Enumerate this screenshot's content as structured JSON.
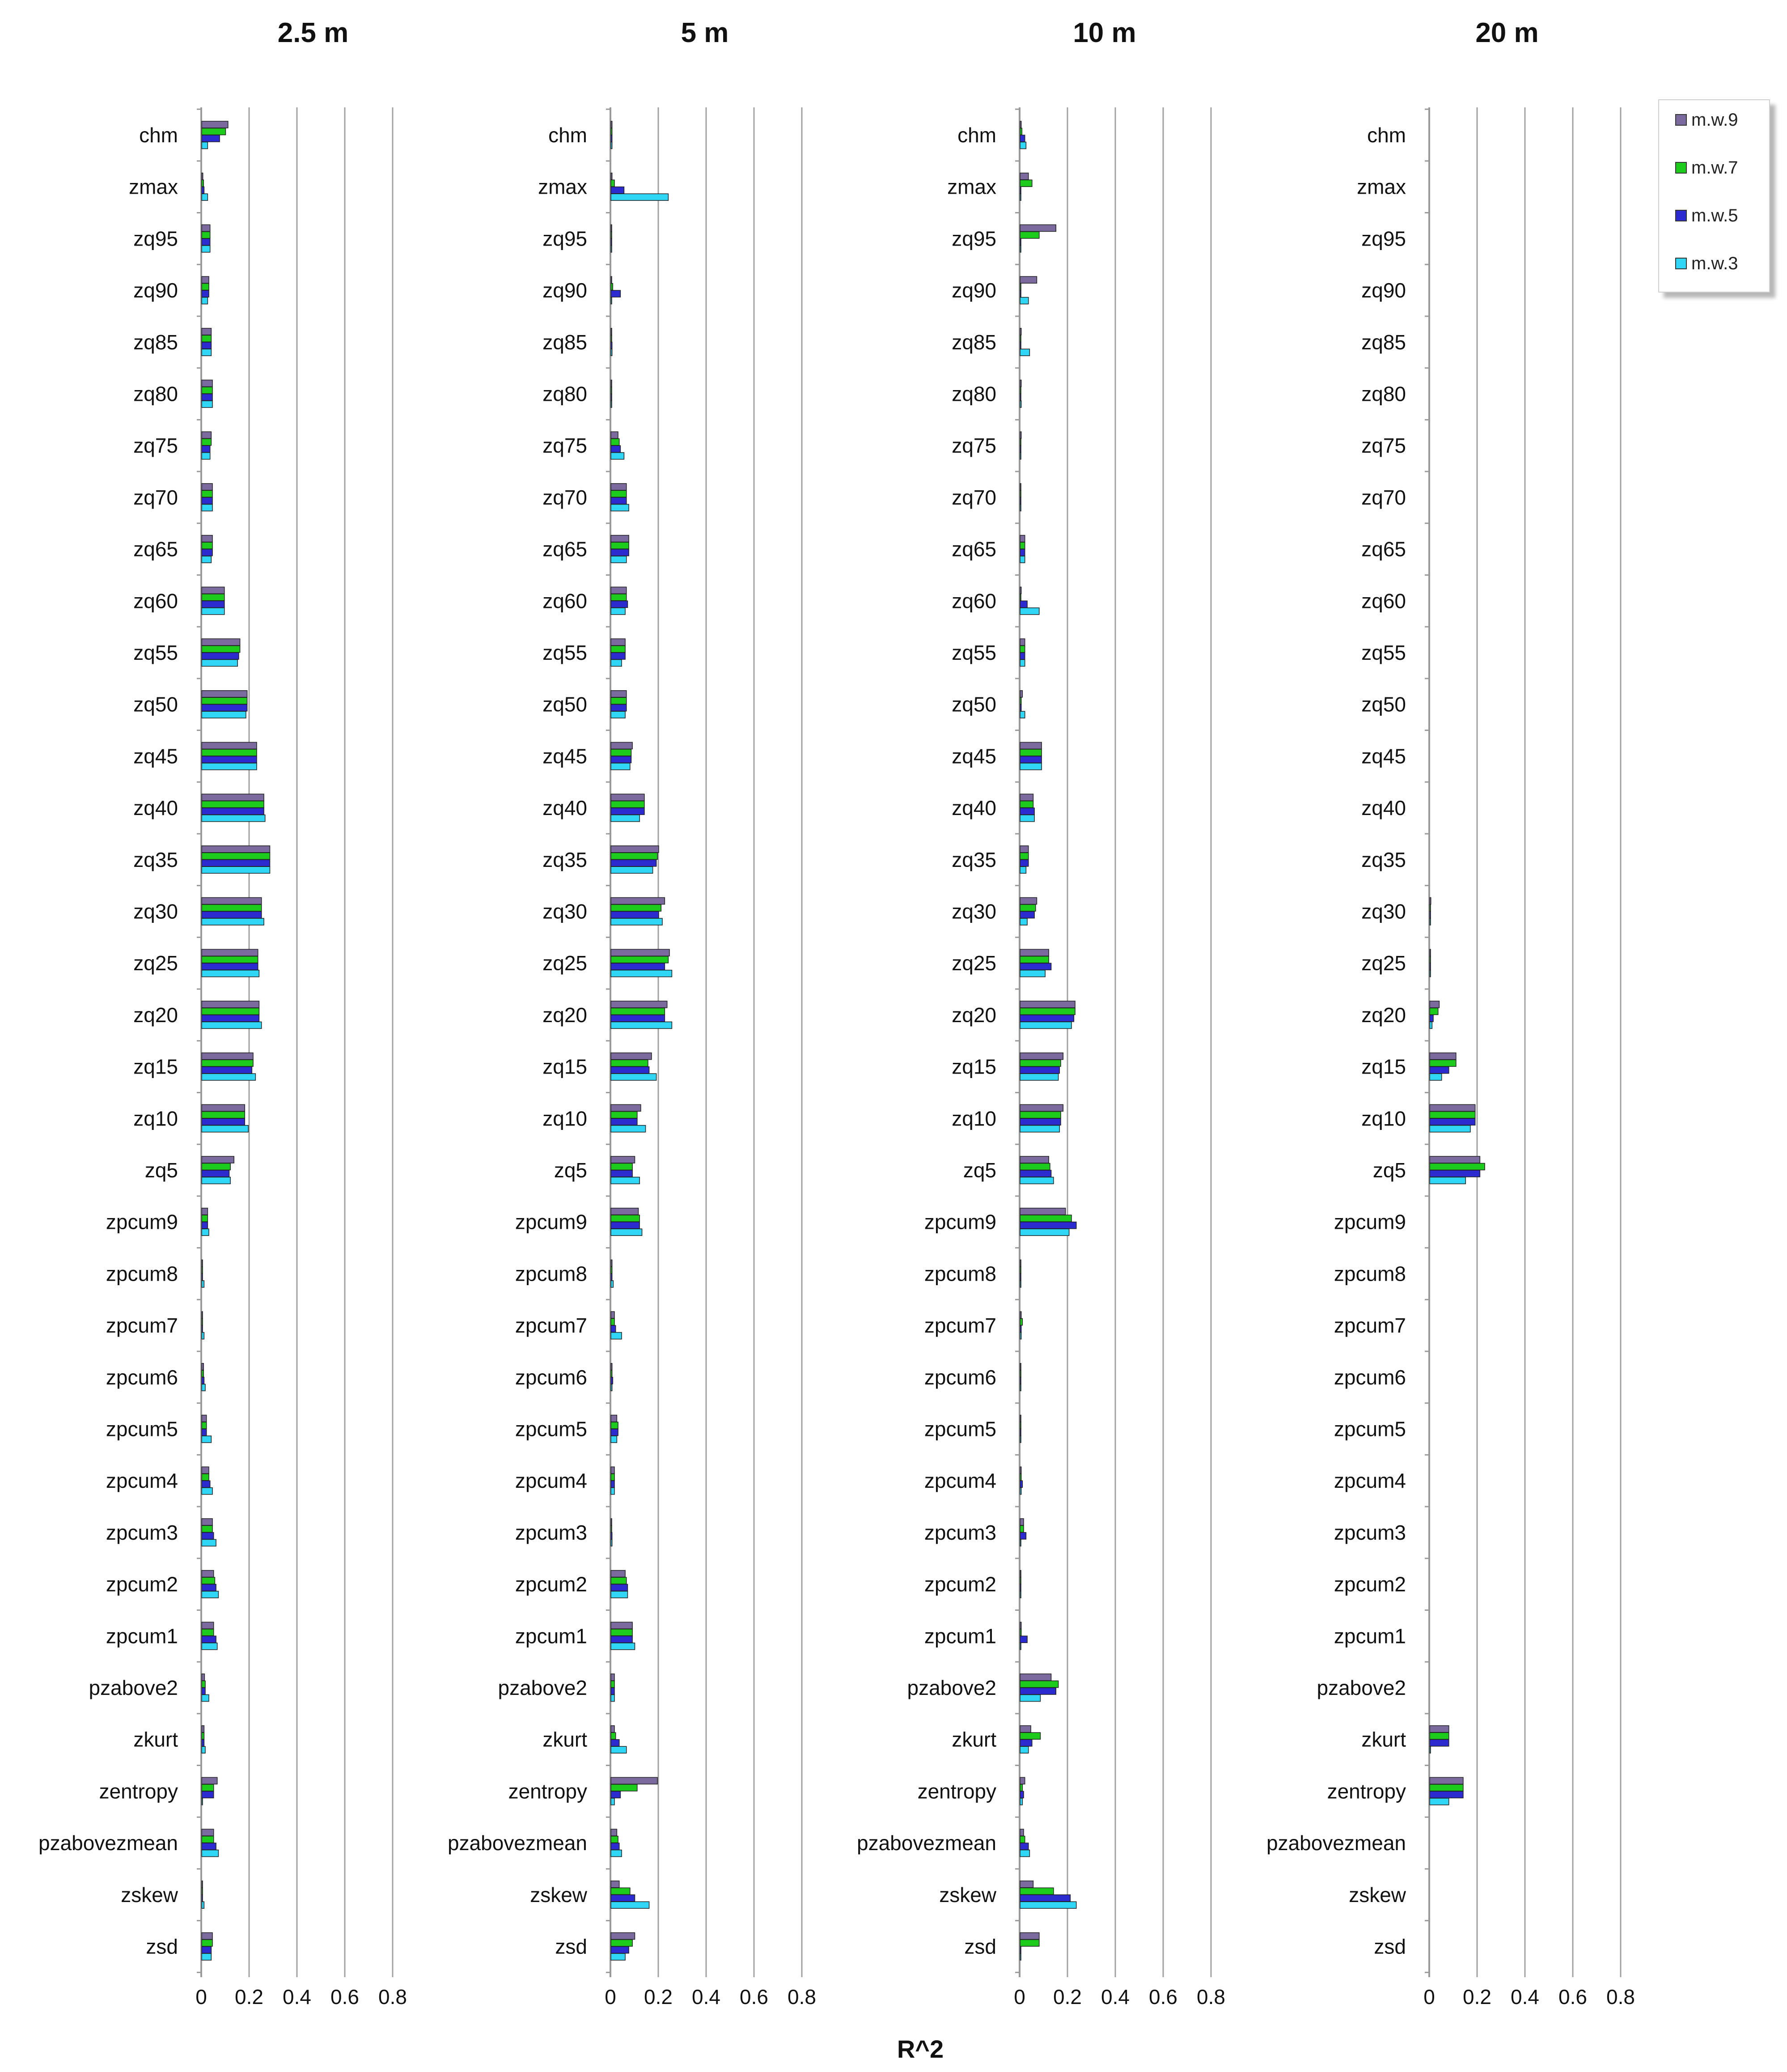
{
  "colors": {
    "mw9": "#7b6a9e",
    "mw7": "#1ccb1c",
    "mw5": "#2b2bd0",
    "mw3": "#2fd6f6",
    "grid": "#a0a0a0",
    "axis": "#9a9a9a",
    "text": "#111111"
  },
  "chart_data": {
    "type": "bar",
    "orientation": "horizontal",
    "xlabel": "R^2",
    "xlim": [
      0,
      0.8
    ],
    "xticks": [
      "0",
      "0.2",
      "0.4",
      "0.6",
      "0.8"
    ],
    "legend_position": "top-right",
    "categories": [
      "chm",
      "zmax",
      "zq95",
      "zq90",
      "zq85",
      "zq80",
      "zq75",
      "zq70",
      "zq65",
      "zq60",
      "zq55",
      "zq50",
      "zq45",
      "zq40",
      "zq35",
      "zq30",
      "zq25",
      "zq20",
      "zq15",
      "zq10",
      "zq5",
      "zpcum9",
      "zpcum8",
      "zpcum7",
      "zpcum6",
      "zpcum5",
      "zpcum4",
      "zpcum3",
      "zpcum2",
      "zpcum1",
      "pzabove2",
      "zkurt",
      "zentropy",
      "pzabovezmean",
      "zskew",
      "zsd"
    ],
    "series_names": [
      "m.w.9",
      "m.w.7",
      "m.w.5",
      "m.w.3"
    ],
    "panels": [
      {
        "title": "2.5 m",
        "series": [
          {
            "name": "m.w.9",
            "values": [
              0.11,
              0.005,
              0.035,
              0.03,
              0.04,
              0.045,
              0.04,
              0.045,
              0.045,
              0.095,
              0.16,
              0.19,
              0.23,
              0.26,
              0.285,
              0.25,
              0.235,
              0.24,
              0.215,
              0.18,
              0.135,
              0.025,
              0.003,
              0.003,
              0.008,
              0.02,
              0.03,
              0.045,
              0.05,
              0.05,
              0.012,
              0.01,
              0.065,
              0.05,
              0.003,
              0.045
            ]
          },
          {
            "name": "m.w.7",
            "values": [
              0.1,
              0.008,
              0.035,
              0.03,
              0.04,
              0.045,
              0.04,
              0.045,
              0.045,
              0.095,
              0.16,
              0.19,
              0.23,
              0.26,
              0.285,
              0.25,
              0.235,
              0.24,
              0.215,
              0.18,
              0.12,
              0.025,
              0.003,
              0.003,
              0.008,
              0.02,
              0.03,
              0.045,
              0.055,
              0.05,
              0.015,
              0.01,
              0.05,
              0.05,
              0.003,
              0.045
            ]
          },
          {
            "name": "m.w.5",
            "values": [
              0.075,
              0.01,
              0.035,
              0.03,
              0.04,
              0.045,
              0.035,
              0.045,
              0.045,
              0.095,
              0.155,
              0.19,
              0.23,
              0.26,
              0.285,
              0.25,
              0.235,
              0.24,
              0.21,
              0.18,
              0.115,
              0.025,
              0.003,
              0.003,
              0.01,
              0.02,
              0.035,
              0.05,
              0.06,
              0.06,
              0.015,
              0.01,
              0.05,
              0.06,
              0.003,
              0.04
            ]
          },
          {
            "name": "m.w.3",
            "values": [
              0.025,
              0.025,
              0.035,
              0.025,
              0.04,
              0.045,
              0.035,
              0.045,
              0.04,
              0.095,
              0.15,
              0.185,
              0.23,
              0.265,
              0.285,
              0.26,
              0.24,
              0.25,
              0.225,
              0.195,
              0.12,
              0.03,
              0.01,
              0.01,
              0.015,
              0.04,
              0.045,
              0.06,
              0.07,
              0.065,
              0.03,
              0.015,
              0.003,
              0.07,
              0.01,
              0.04
            ]
          }
        ]
      },
      {
        "title": "5 m",
        "series": [
          {
            "name": "m.w.9",
            "values": [
              0.005,
              0.005,
              0.003,
              0.003,
              0.003,
              0.002,
              0.03,
              0.065,
              0.075,
              0.065,
              0.06,
              0.065,
              0.09,
              0.14,
              0.2,
              0.225,
              0.245,
              0.235,
              0.17,
              0.125,
              0.1,
              0.115,
              0.005,
              0.015,
              0.005,
              0.025,
              0.015,
              0.003,
              0.06,
              0.09,
              0.015,
              0.015,
              0.195,
              0.025,
              0.035,
              0.1
            ]
          },
          {
            "name": "m.w.7",
            "values": [
              0.005,
              0.015,
              0.003,
              0.008,
              0.003,
              0.002,
              0.035,
              0.065,
              0.075,
              0.065,
              0.06,
              0.065,
              0.085,
              0.14,
              0.195,
              0.21,
              0.24,
              0.225,
              0.155,
              0.11,
              0.09,
              0.12,
              0.005,
              0.015,
              0.005,
              0.03,
              0.015,
              0.003,
              0.065,
              0.09,
              0.015,
              0.02,
              0.11,
              0.03,
              0.08,
              0.09
            ]
          },
          {
            "name": "m.w.5",
            "values": [
              0.005,
              0.055,
              0.003,
              0.04,
              0.005,
              0.002,
              0.04,
              0.065,
              0.075,
              0.07,
              0.06,
              0.065,
              0.085,
              0.14,
              0.19,
              0.2,
              0.225,
              0.225,
              0.16,
              0.11,
              0.09,
              0.12,
              0.005,
              0.02,
              0.008,
              0.03,
              0.015,
              0.005,
              0.07,
              0.09,
              0.015,
              0.035,
              0.04,
              0.035,
              0.1,
              0.075
            ]
          },
          {
            "name": "m.w.3",
            "values": [
              0.005,
              0.24,
              0.003,
              0.003,
              0.005,
              0.002,
              0.055,
              0.075,
              0.065,
              0.06,
              0.045,
              0.06,
              0.08,
              0.12,
              0.175,
              0.215,
              0.255,
              0.255,
              0.19,
              0.145,
              0.12,
              0.13,
              0.01,
              0.045,
              0.005,
              0.025,
              0.015,
              0.005,
              0.07,
              0.1,
              0.015,
              0.065,
              0.015,
              0.045,
              0.16,
              0.06
            ]
          }
        ]
      },
      {
        "title": "10 m",
        "series": [
          {
            "name": "m.w.9",
            "values": [
              0.005,
              0.035,
              0.15,
              0.07,
              0.005,
              0.005,
              0.005,
              0.002,
              0.02,
              0.005,
              0.02,
              0.01,
              0.09,
              0.055,
              0.035,
              0.07,
              0.12,
              0.23,
              0.18,
              0.18,
              0.12,
              0.19,
              0.003,
              0.005,
              0.003,
              0.003,
              0.005,
              0.015,
              0.003,
              0.005,
              0.13,
              0.045,
              0.02,
              0.015,
              0.055,
              0.08
            ]
          },
          {
            "name": "m.w.7",
            "values": [
              0.008,
              0.05,
              0.08,
              0.003,
              0.003,
              0.003,
              0.003,
              0.002,
              0.02,
              0.003,
              0.02,
              0.005,
              0.09,
              0.055,
              0.035,
              0.065,
              0.12,
              0.23,
              0.17,
              0.17,
              0.125,
              0.215,
              0.003,
              0.01,
              0.003,
              0.003,
              0.005,
              0.015,
              0.003,
              0.005,
              0.16,
              0.085,
              0.01,
              0.02,
              0.14,
              0.08
            ]
          },
          {
            "name": "m.w.5",
            "values": [
              0.02,
              0.003,
              0.003,
              0.003,
              0.003,
              0.003,
              0.003,
              0.002,
              0.02,
              0.03,
              0.02,
              0.005,
              0.09,
              0.06,
              0.035,
              0.06,
              0.13,
              0.225,
              0.165,
              0.17,
              0.13,
              0.235,
              0.003,
              0.005,
              0.003,
              0.003,
              0.01,
              0.025,
              0.003,
              0.03,
              0.15,
              0.05,
              0.015,
              0.035,
              0.21,
              0.003
            ]
          },
          {
            "name": "m.w.3",
            "values": [
              0.025,
              0.003,
              0.003,
              0.035,
              0.04,
              0.005,
              0.003,
              0.002,
              0.02,
              0.08,
              0.02,
              0.02,
              0.09,
              0.06,
              0.025,
              0.03,
              0.105,
              0.215,
              0.16,
              0.165,
              0.14,
              0.205,
              0.003,
              0.005,
              0.003,
              0.003,
              0.005,
              0.003,
              0.003,
              0.003,
              0.085,
              0.035,
              0.01,
              0.04,
              0.235,
              0.003
            ]
          }
        ]
      },
      {
        "title": "20 m",
        "series": [
          {
            "name": "m.w.9",
            "values": [
              0,
              0,
              0,
              0,
              0,
              0,
              0,
              0,
              0,
              0,
              0,
              0,
              0,
              0,
              0,
              0.005,
              0.003,
              0.04,
              0.11,
              0.19,
              0.21,
              0,
              0,
              0,
              0,
              0,
              0,
              0,
              0,
              0,
              0,
              0.08,
              0.14,
              0,
              0,
              0
            ]
          },
          {
            "name": "m.w.7",
            "values": [
              0,
              0,
              0,
              0,
              0,
              0,
              0,
              0,
              0,
              0,
              0,
              0,
              0,
              0,
              0,
              0.003,
              0.003,
              0.035,
              0.11,
              0.19,
              0.23,
              0,
              0,
              0,
              0,
              0,
              0,
              0,
              0,
              0,
              0,
              0.08,
              0.14,
              0,
              0,
              0
            ]
          },
          {
            "name": "m.w.5",
            "values": [
              0,
              0,
              0,
              0,
              0,
              0,
              0,
              0,
              0,
              0,
              0,
              0,
              0,
              0,
              0,
              0.003,
              0.003,
              0.015,
              0.08,
              0.19,
              0.21,
              0,
              0,
              0,
              0,
              0,
              0,
              0,
              0,
              0,
              0,
              0.08,
              0.14,
              0,
              0,
              0
            ]
          },
          {
            "name": "m.w.3",
            "values": [
              0,
              0,
              0,
              0,
              0,
              0,
              0,
              0,
              0,
              0,
              0,
              0,
              0,
              0,
              0,
              0.003,
              0.003,
              0.01,
              0.05,
              0.17,
              0.15,
              0,
              0,
              0,
              0,
              0,
              0,
              0,
              0,
              0,
              0,
              0.003,
              0.08,
              0,
              0,
              0
            ]
          }
        ]
      }
    ]
  }
}
